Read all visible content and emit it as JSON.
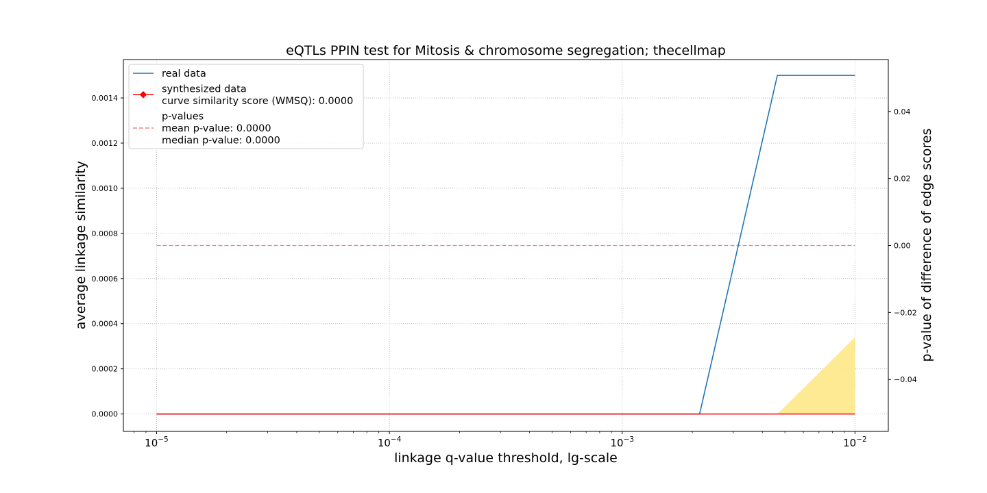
{
  "chart_data": {
    "type": "line",
    "title": "eQTLs PPIN test for Mitosis & chromosome segregation; thecellmap",
    "xlabel": "linkage q-value threshold, lg-scale",
    "ylabel": "average linkage similarity",
    "y2label": "p-value of difference of edge scores",
    "xscale": "log",
    "xlim": [
      7.2e-06,
      0.0139
    ],
    "ylim": [
      -7.7e-05,
      0.00157
    ],
    "y2lim": [
      -0.0555,
      0.0555
    ],
    "grid": true,
    "legend_position": "top-left",
    "x_ticks": [
      {
        "value": 1e-05,
        "base": "10",
        "exp": "−5"
      },
      {
        "value": 0.0001,
        "base": "10",
        "exp": "−4"
      },
      {
        "value": 0.001,
        "base": "10",
        "exp": "−3"
      },
      {
        "value": 0.01,
        "base": "10",
        "exp": "−2"
      }
    ],
    "y_ticks": [
      {
        "value": 0.0,
        "label": "0.0000"
      },
      {
        "value": 0.0002,
        "label": "0.0002"
      },
      {
        "value": 0.0004,
        "label": "0.0004"
      },
      {
        "value": 0.0006,
        "label": "0.0006"
      },
      {
        "value": 0.0008,
        "label": "0.0008"
      },
      {
        "value": 0.001,
        "label": "0.0010"
      },
      {
        "value": 0.0012,
        "label": "0.0012"
      },
      {
        "value": 0.0014,
        "label": "0.0014"
      }
    ],
    "y2_ticks": [
      {
        "value": -0.04,
        "label": "−0.04"
      },
      {
        "value": -0.02,
        "label": "−0.02"
      },
      {
        "value": 0.0,
        "label": "0.00"
      },
      {
        "value": 0.02,
        "label": "0.02"
      },
      {
        "value": 0.04,
        "label": "0.04"
      }
    ],
    "series": [
      {
        "name": "real data",
        "axis": "left",
        "color": "#1f77b4",
        "style": "solid",
        "x": [
          1e-05,
          0.00215,
          0.00464,
          0.01
        ],
        "y": [
          0.0,
          0.0,
          0.0015,
          0.0015
        ]
      },
      {
        "name": "synthesized data",
        "axis": "left",
        "color": "#ff0000",
        "style": "solid",
        "x": [
          1e-05,
          0.01
        ],
        "y": [
          0.0,
          0.0
        ]
      },
      {
        "name": "p-values",
        "axis": "right",
        "color": "#f08080",
        "style": "dashed",
        "x": [
          1e-05,
          0.01
        ],
        "y": [
          0.0,
          0.0
        ]
      }
    ],
    "band": {
      "axis": "left",
      "color": "#fde98c",
      "x": [
        0.00464,
        0.01
      ],
      "y_low": [
        0.0,
        0.0
      ],
      "y_high": [
        0.0,
        0.00034
      ]
    },
    "legend": [
      {
        "marker": "line",
        "color": "#1f77b4",
        "dashed": false,
        "lines": [
          "real data"
        ]
      },
      {
        "marker": "line-diamond",
        "color": "#ff0000",
        "dashed": false,
        "lines": [
          "synthesized data",
          "curve similarity score (WMSQ): 0.0000"
        ]
      },
      {
        "marker": "line",
        "color": "#f08080",
        "dashed": true,
        "lines": [
          "p-values",
          "mean p-value: 0.0000",
          "median p-value: 0.0000"
        ]
      }
    ]
  }
}
